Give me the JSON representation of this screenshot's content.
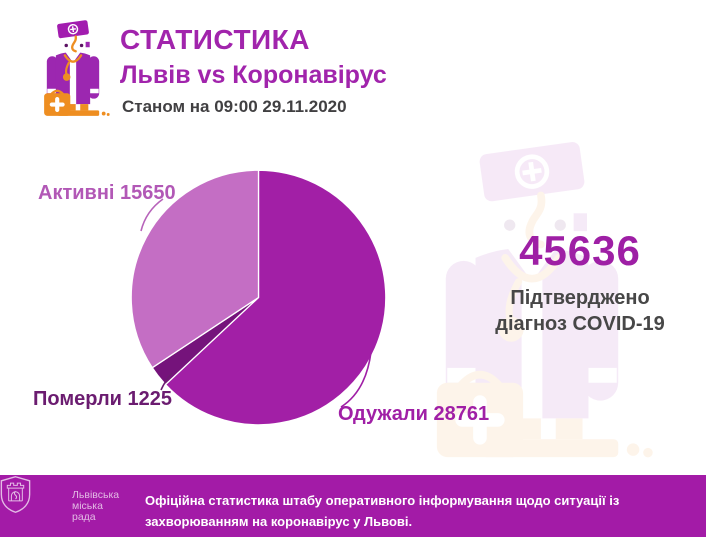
{
  "header": {
    "title": "СТАТИСТИКА",
    "subtitle": "Львів vs Коронавірус",
    "date_line": "Станом на 09:00 29.11.2020"
  },
  "chart_data": {
    "type": "pie",
    "title": "Львів vs Коронавірус — станом на 09:00 29.11.2020",
    "total": 45636,
    "start_angle_deg": 0,
    "direction": "clockwise",
    "legend_position": "around-pie",
    "slices": [
      {
        "key": "recovered",
        "label": "Одужали",
        "value": 28761,
        "label_text": "Одужали 28761",
        "color": "#A21FA6",
        "label_color": "#A01FA6"
      },
      {
        "key": "dead",
        "label": "Померли",
        "value": 1225,
        "label_text": "Померли 1225",
        "color": "#75137B",
        "label_color": "#6B1C70"
      },
      {
        "key": "active",
        "label": "Активні",
        "value": 15650,
        "label_text": "Активні 15650",
        "color": "#C46EC4",
        "label_color": "#B258B6"
      }
    ]
  },
  "summary": {
    "confirmed_total": "45636",
    "caption_line1": "Підтверджено",
    "caption_line2": "діагноз COVID-19"
  },
  "footer": {
    "logo_lines": [
      "Львівська",
      "міська",
      "рада"
    ],
    "text": "Офіційна статистика штабу оперативного інформування щодо ситуації із захворюванням на коронавірус у Львові.",
    "bg_color": "#A31BA7"
  },
  "colors": {
    "accent_magenta": "#A124AC",
    "number_magenta": "#9E1FA5",
    "dark_text": "#414042",
    "caption_text": "#474747",
    "icon_purple": "#9C27B0",
    "icon_orange": "#EE8E21",
    "footer_logo_tint": "#E3BBE5"
  }
}
